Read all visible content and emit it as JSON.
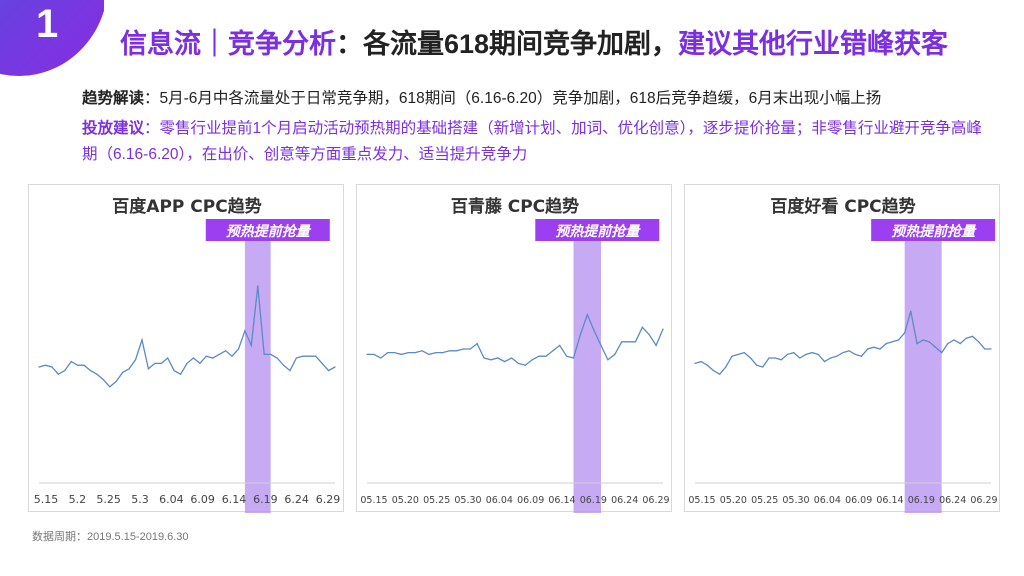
{
  "slide": {
    "number": "1",
    "title_part1": "信息流｜竞争分析",
    "title_part2": "：各流量618期间竞争加剧，",
    "title_part3": "建议其他行业错峰获客",
    "trend_label": "趋势解读",
    "trend_text": "：5月-6月中各流量处于日常竞争期，618期间（6.16-6.20）竞争加剧，618后竞争趋缓，6月末出现小幅上扬",
    "advice_label": "投放建议",
    "advice_text1": "：零售行业提前1个月启动活动预热期的基础搭建（新增计划、加词、优化创意），逐步提价抢量；",
    "advice_text2": "非零售行业避开竞争高峰期（6.16-6.20），在出价、创意等方面重点发力、适当提升竞争力",
    "footnote": "数据周期：2019.5.15-2019.6.30"
  },
  "colors": {
    "accent": "#7b2fe0",
    "line": "#5b8ac6",
    "highlight": "#b48ef0",
    "badge": "#9b3ff0"
  },
  "chart_data": [
    {
      "type": "line",
      "title": "百度APP CPC趋势",
      "annotation": "预热提前抢量",
      "highlight_range": [
        32,
        36
      ],
      "x_tick_labels": [
        "5.15",
        "5.2",
        "5.25",
        "5.3",
        "6.04",
        "6.09",
        "6.14",
        "6.19",
        "6.24",
        "6.29"
      ],
      "values": [
        50,
        51,
        50,
        46,
        48,
        53,
        51,
        51,
        48,
        46,
        43,
        39,
        42,
        47,
        49,
        54,
        65,
        49,
        52,
        52,
        55,
        48,
        46,
        52,
        55,
        52,
        56,
        55,
        57,
        59,
        56,
        60,
        70,
        62,
        95,
        57,
        57,
        55,
        51,
        48,
        55,
        56,
        56,
        56,
        52,
        48,
        50
      ]
    },
    {
      "type": "line",
      "title": "百青藤 CPC趋势",
      "annotation": "预热提前抢量",
      "highlight_range": [
        30,
        34
      ],
      "x_tick_labels": [
        "05.15",
        "05.20",
        "05.25",
        "05.30",
        "06.04",
        "06.09",
        "06.14",
        "06.19",
        "06.24",
        "06.29"
      ],
      "values": [
        57,
        57,
        55,
        58,
        58,
        57,
        58,
        58,
        59,
        57,
        58,
        58,
        59,
        59,
        60,
        60,
        63,
        55,
        54,
        55,
        53,
        55,
        52,
        51,
        54,
        56,
        56,
        59,
        62,
        56,
        55,
        68,
        79,
        70,
        62,
        54,
        57,
        64,
        64,
        64,
        72,
        68,
        62,
        71
      ]
    },
    {
      "type": "line",
      "title": "百度好看 CPC趋势",
      "annotation": "预热提前抢量",
      "highlight_range": [
        34,
        40
      ],
      "x_tick_labels": [
        "05.15",
        "05.20",
        "05.25",
        "05.30",
        "06.04",
        "06.09",
        "06.14",
        "06.19",
        "06.24",
        "06.29"
      ],
      "values": [
        52,
        53,
        51,
        48,
        46,
        50,
        56,
        57,
        58,
        55,
        51,
        50,
        55,
        55,
        54,
        57,
        58,
        55,
        57,
        58,
        57,
        53,
        55,
        56,
        58,
        59,
        57,
        56,
        60,
        61,
        60,
        63,
        64,
        65,
        69,
        81,
        63,
        65,
        64,
        61,
        58,
        63,
        65,
        63,
        66,
        67,
        64,
        60,
        60
      ]
    }
  ]
}
